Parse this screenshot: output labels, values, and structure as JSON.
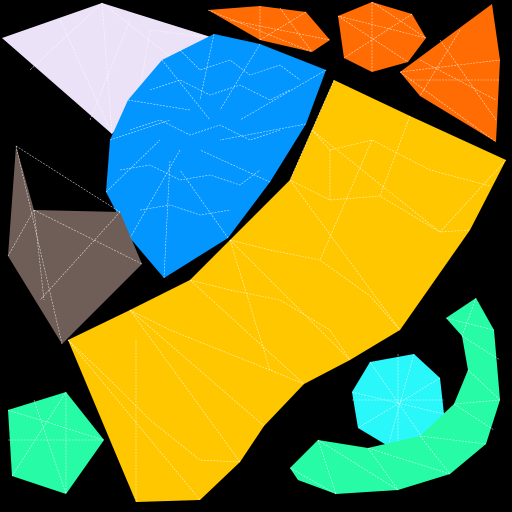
{
  "texture_atlas": {
    "background_color": "#000000",
    "islands": [
      {
        "name": "lavender-island",
        "color": "#ECE2F8"
      },
      {
        "name": "blue-island",
        "color": "#0496FF"
      },
      {
        "name": "orange-island-small-top",
        "color": "#FF6C04"
      },
      {
        "name": "orange-island-octagon",
        "color": "#FF6C04"
      },
      {
        "name": "orange-island-wedge",
        "color": "#FF6C04"
      },
      {
        "name": "brown-island",
        "color": "#6E5E57"
      },
      {
        "name": "yellow-island",
        "color": "#FFC700"
      },
      {
        "name": "cyan-island",
        "color": "#2AF7FA"
      },
      {
        "name": "green-island-pentagon",
        "color": "#27FBA5"
      },
      {
        "name": "green-island-arc",
        "color": "#27FBA5"
      }
    ]
  }
}
